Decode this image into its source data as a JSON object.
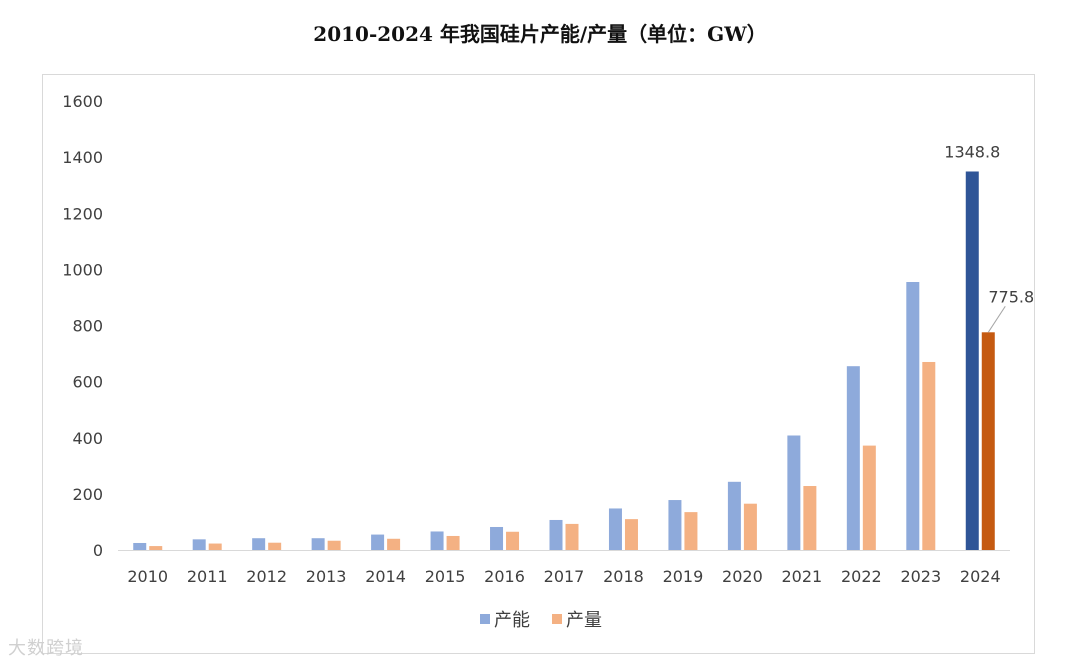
{
  "title": "2010-2024 年我国硅片产能/产量（单位：GW）",
  "watermark": "大数跨境",
  "colors": {
    "capacity": "#8eaadb",
    "output": "#f4b183",
    "capacity_highlight": "#2f5597",
    "output_highlight": "#c55a11"
  },
  "chart_data": {
    "type": "bar",
    "title": "2010-2024 年我国硅片产能/产量（单位：GW）",
    "categories": [
      "2010",
      "2011",
      "2012",
      "2013",
      "2014",
      "2015",
      "2016",
      "2017",
      "2018",
      "2019",
      "2020",
      "2021",
      "2022",
      "2023",
      "2024"
    ],
    "series": [
      {
        "name": "产能",
        "values": [
          25,
          38,
          42,
          42,
          55,
          66,
          82,
          107,
          148,
          178,
          243,
          408,
          655,
          955,
          1348.8
        ]
      },
      {
        "name": "产量",
        "values": [
          14,
          23,
          26,
          33,
          40,
          50,
          65,
          93,
          110,
          135,
          165,
          228,
          372,
          670,
          775.8
        ]
      }
    ],
    "data_labels": [
      {
        "series": "产能",
        "category": "2024",
        "text": "1348.8"
      },
      {
        "series": "产量",
        "category": "2024",
        "text": "775.8"
      }
    ],
    "yticks": [
      0,
      200,
      400,
      600,
      800,
      1000,
      1200,
      1400,
      1600
    ],
    "ylim": [
      0,
      1600
    ],
    "grid": false,
    "legend": {
      "position": "bottom",
      "items": [
        "产能",
        "产量"
      ]
    }
  }
}
